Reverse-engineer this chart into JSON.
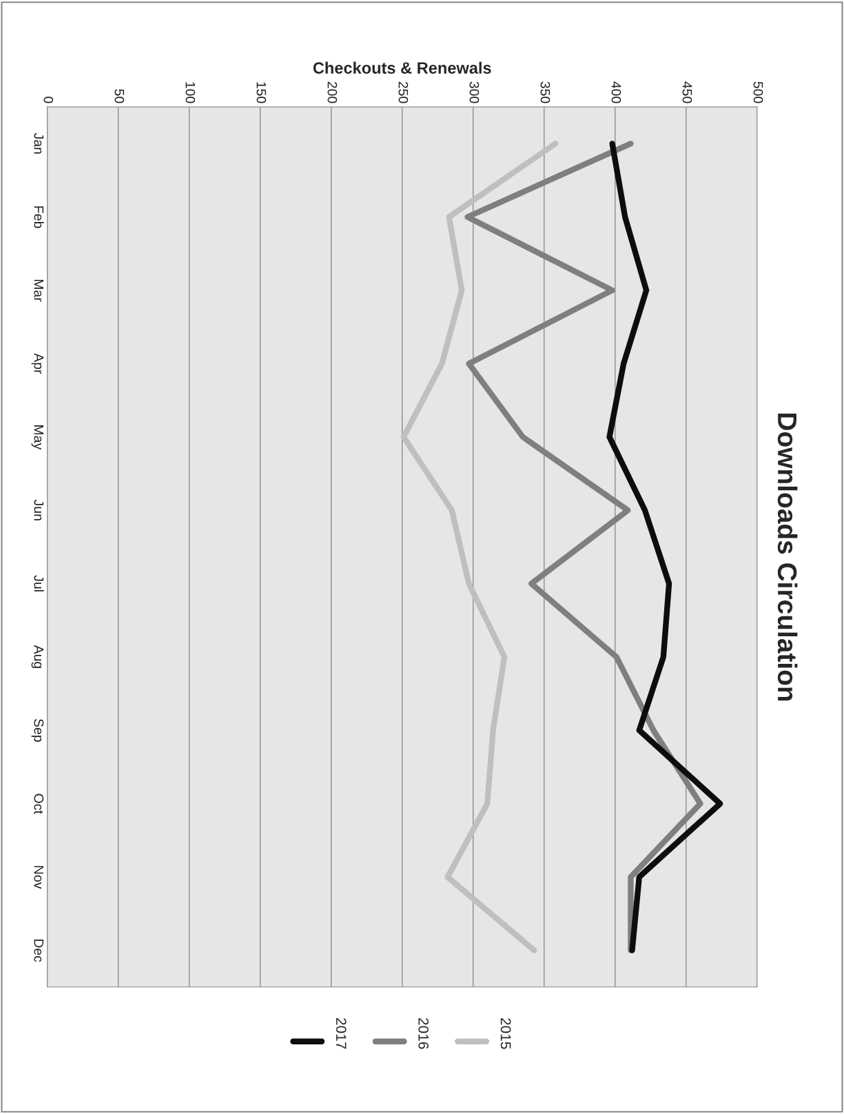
{
  "chart_data": {
    "type": "line",
    "orientation": "horizontal",
    "title": "Downloads Circulation",
    "xlabel": "Checkouts & Renewals",
    "categories": [
      "Jan",
      "Feb",
      "Mar",
      "Apr",
      "May",
      "Jun",
      "Jul",
      "Aug",
      "Sep",
      "Oct",
      "Nov",
      "Dec"
    ],
    "series": [
      {
        "name": "2015",
        "color": "#bfbfbf",
        "values": [
          358,
          283,
          292,
          278,
          251,
          285,
          297,
          322,
          314,
          310,
          282,
          343
        ]
      },
      {
        "name": "2016",
        "color": "#7f7f7f",
        "values": [
          411,
          296,
          398,
          297,
          335,
          409,
          341,
          401,
          427,
          460,
          411,
          411
        ]
      },
      {
        "name": "2017",
        "color": "#0d0d0d",
        "values": [
          398,
          407,
          422,
          406,
          396,
          421,
          438,
          434,
          417,
          474,
          417,
          412
        ]
      }
    ],
    "xlim": [
      0,
      500
    ],
    "xticks": [
      0,
      50,
      100,
      150,
      200,
      250,
      300,
      350,
      400,
      450,
      500
    ],
    "grid": "x",
    "legend": "bottom",
    "line_style": "solid",
    "marker": "none"
  }
}
